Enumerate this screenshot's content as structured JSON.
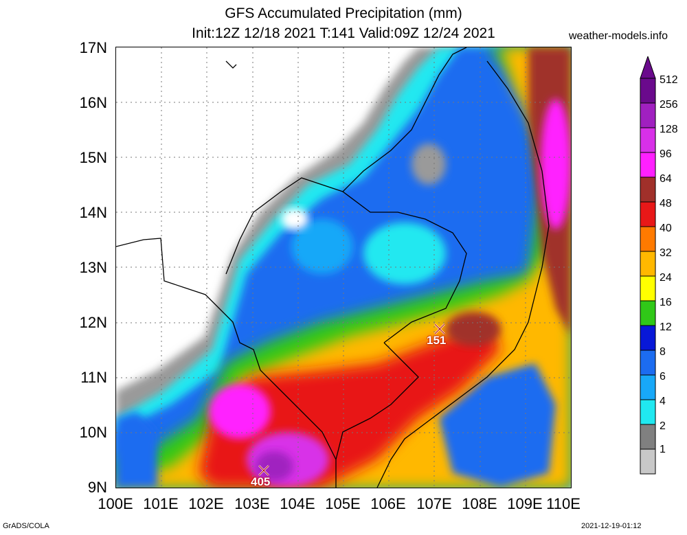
{
  "header": {
    "title": "GFS Accumulated Precipitation (mm)",
    "subtitle": "Init:12Z 12/18 2021 T:141 Valid:09Z 12/24 2021",
    "site": "weather-models.info"
  },
  "footer": {
    "left": "GrADS/COLA",
    "right": "2021-12-19-01:12"
  },
  "axes": {
    "lat_labels": [
      "17N",
      "16N",
      "15N",
      "14N",
      "13N",
      "12N",
      "11N",
      "10N",
      "9N"
    ],
    "lon_labels": [
      "100E",
      "101E",
      "102E",
      "103E",
      "104E",
      "105E",
      "106E",
      "107E",
      "108E",
      "109E",
      "110E"
    ]
  },
  "colorbar": {
    "levels": [
      "512",
      "256",
      "128",
      "96",
      "64",
      "48",
      "40",
      "32",
      "24",
      "16",
      "12",
      "8",
      "6",
      "4",
      "2",
      "1"
    ],
    "colors": [
      "#6a0a8c",
      "#a020c0",
      "#d830e8",
      "#ff20ff",
      "#a0302a",
      "#e81818",
      "#ff7a00",
      "#ffb800",
      "#ffff00",
      "#30c818",
      "#0818d8",
      "#1c6cf0",
      "#18a8f8",
      "#20e8f0",
      "#808080",
      "#c8c8c8"
    ]
  },
  "markers": [
    {
      "label": "151",
      "symbol": "✕"
    },
    {
      "label": "405",
      "symbol": "✕"
    }
  ]
}
